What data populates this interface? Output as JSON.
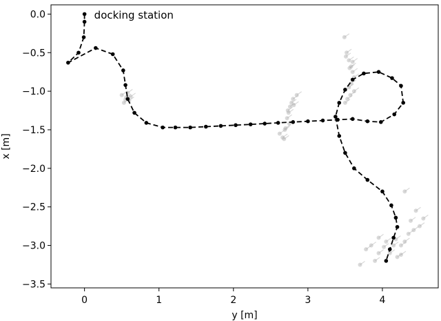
{
  "chart_data": {
    "type": "scatter",
    "title": "",
    "xlabel": "y [m]",
    "ylabel": "x [m]",
    "xlim": [
      -0.45,
      4.75
    ],
    "ylim": [
      -3.55,
      0.12
    ],
    "xticks": [
      0,
      1,
      2,
      3,
      4
    ],
    "xtick_labels": [
      "0",
      "1",
      "2",
      "3",
      "4"
    ],
    "yticks": [
      0.0,
      -0.5,
      -1.0,
      -1.5,
      -2.0,
      -2.5,
      -3.0,
      -3.5
    ],
    "ytick_labels": [
      "0.0",
      "−0.5",
      "−1.0",
      "−1.5",
      "−2.0",
      "−2.5",
      "−3.0",
      "−3.5"
    ],
    "grid": false,
    "annotations": [
      {
        "text": "docking station",
        "x": 0.13,
        "y": -0.06
      }
    ],
    "colors": {
      "trajectory": "#000000",
      "samples": "#aaaaaa"
    },
    "series": [
      {
        "kind": "trajectory",
        "points": [
          [
            0.0,
            0.0
          ],
          [
            0.0,
            -0.1
          ],
          [
            -0.01,
            -0.3
          ],
          [
            -0.08,
            -0.5
          ],
          [
            -0.22,
            -0.63
          ],
          [
            0.15,
            -0.44
          ],
          [
            0.38,
            -0.52
          ],
          [
            0.52,
            -0.73
          ],
          [
            0.55,
            -0.92
          ],
          [
            0.58,
            -1.1
          ],
          [
            0.67,
            -1.28
          ],
          [
            0.83,
            -1.41
          ],
          [
            1.05,
            -1.47
          ],
          [
            1.22,
            -1.47
          ],
          [
            1.42,
            -1.47
          ],
          [
            1.63,
            -1.46
          ],
          [
            1.83,
            -1.45
          ],
          [
            2.03,
            -1.44
          ],
          [
            2.23,
            -1.43
          ],
          [
            2.42,
            -1.42
          ],
          [
            2.6,
            -1.41
          ],
          [
            2.8,
            -1.4
          ],
          [
            3.0,
            -1.39
          ],
          [
            3.2,
            -1.38
          ],
          [
            3.4,
            -1.37
          ],
          [
            3.6,
            -1.36
          ],
          [
            3.8,
            -1.39
          ],
          [
            3.98,
            -1.4
          ],
          [
            4.16,
            -1.3
          ],
          [
            4.28,
            -1.15
          ],
          [
            4.25,
            -0.93
          ],
          [
            4.13,
            -0.83
          ],
          [
            3.95,
            -0.75
          ],
          [
            3.75,
            -0.77
          ],
          [
            3.6,
            -0.85
          ],
          [
            3.5,
            -0.98
          ],
          [
            3.42,
            -1.15
          ],
          [
            3.37,
            -1.33
          ],
          [
            3.42,
            -1.58
          ],
          [
            3.5,
            -1.8
          ],
          [
            3.62,
            -2.0
          ],
          [
            3.8,
            -2.15
          ],
          [
            4.0,
            -2.3
          ],
          [
            4.12,
            -2.48
          ],
          [
            4.18,
            -2.64
          ],
          [
            4.2,
            -2.76
          ],
          [
            4.15,
            -2.9
          ],
          [
            4.1,
            -3.05
          ],
          [
            4.05,
            -3.2
          ]
        ]
      },
      {
        "kind": "samples",
        "points": [
          [
            0.5,
            -1.05
          ],
          [
            0.56,
            -1.08
          ],
          [
            0.6,
            -1.12
          ],
          [
            0.53,
            -1.15
          ],
          [
            0.58,
            -1.02
          ],
          [
            0.62,
            -1.07
          ],
          [
            0.55,
            -1.11
          ],
          [
            2.62,
            -1.55
          ],
          [
            2.66,
            -1.6
          ],
          [
            2.7,
            -1.48
          ],
          [
            2.72,
            -1.35
          ],
          [
            2.74,
            -1.28
          ],
          [
            2.76,
            -1.2
          ],
          [
            2.78,
            -1.15
          ],
          [
            2.8,
            -1.1
          ],
          [
            2.85,
            -1.05
          ],
          [
            2.75,
            -1.42
          ],
          [
            2.69,
            -1.5
          ],
          [
            2.73,
            -1.25
          ],
          [
            2.81,
            -1.18
          ],
          [
            2.68,
            -1.62
          ],
          [
            3.49,
            -0.3
          ],
          [
            3.52,
            -0.5
          ],
          [
            3.55,
            -0.6
          ],
          [
            3.58,
            -0.68
          ],
          [
            3.6,
            -0.75
          ],
          [
            3.62,
            -0.82
          ],
          [
            3.58,
            -0.9
          ],
          [
            3.55,
            -0.95
          ],
          [
            3.62,
            -1.0
          ],
          [
            3.57,
            -1.05
          ],
          [
            3.53,
            -1.1
          ],
          [
            3.5,
            -1.15
          ],
          [
            3.56,
            -0.7
          ],
          [
            3.6,
            -0.62
          ],
          [
            3.51,
            -0.55
          ],
          [
            4.3,
            -2.3
          ],
          [
            4.45,
            -2.55
          ],
          [
            4.55,
            -2.65
          ],
          [
            4.5,
            -2.75
          ],
          [
            4.42,
            -2.8
          ],
          [
            4.35,
            -2.85
          ],
          [
            4.3,
            -2.95
          ],
          [
            4.25,
            -3.0
          ],
          [
            4.15,
            -3.0
          ],
          [
            4.05,
            -2.95
          ],
          [
            3.95,
            -2.9
          ],
          [
            3.85,
            -3.0
          ],
          [
            3.78,
            -3.05
          ],
          [
            3.95,
            -3.1
          ],
          [
            4.1,
            -3.1
          ],
          [
            4.2,
            -3.15
          ],
          [
            4.25,
            -3.12
          ],
          [
            3.9,
            -3.2
          ],
          [
            3.7,
            -3.25
          ],
          [
            4.02,
            -3.02
          ],
          [
            4.18,
            -2.92
          ],
          [
            4.38,
            -2.68
          ]
        ]
      }
    ]
  }
}
